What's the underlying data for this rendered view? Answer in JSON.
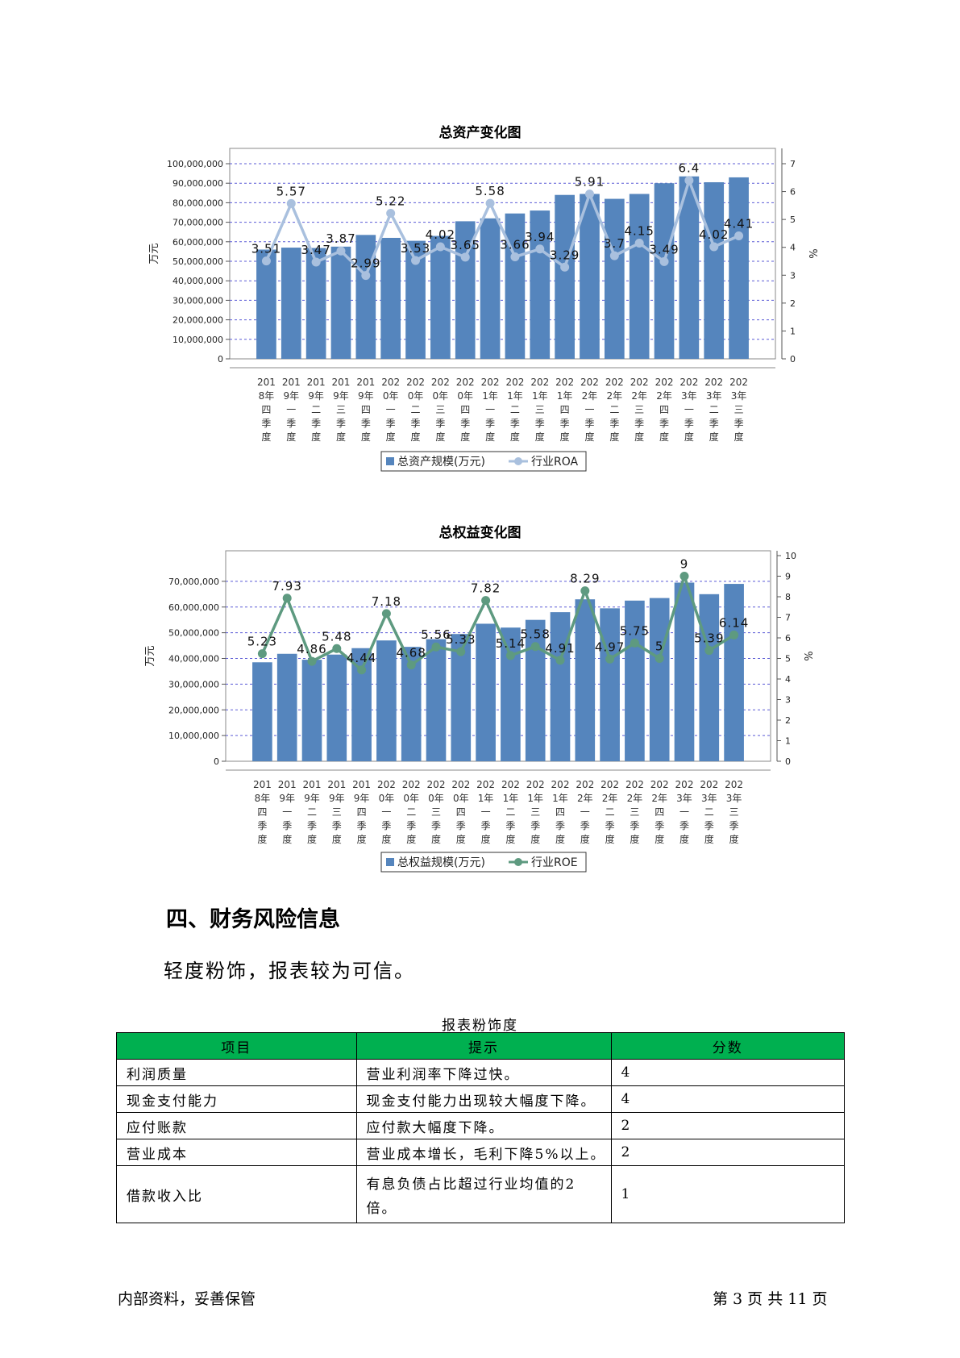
{
  "chart_data": [
    {
      "type": "bar",
      "title": "总资产变化图",
      "ylabel": "万元",
      "y2label": "%",
      "ylim": [
        0,
        100000000
      ],
      "y2lim": [
        0,
        7
      ],
      "yticks": [
        "0",
        "10,000,000",
        "20,000,000",
        "30,000,000",
        "40,000,000",
        "50,000,000",
        "60,000,000",
        "70,000,000",
        "80,000,000",
        "90,000,000",
        "100,000,000"
      ],
      "y2ticks": [
        "0",
        "1",
        "2",
        "3",
        "4",
        "5",
        "6",
        "7"
      ],
      "categories": [
        "2018年四季度",
        "2019年一季度",
        "2019年二季度",
        "2019年三季度",
        "2019年四季度",
        "2020年一季度",
        "2020年二季度",
        "2020年三季度",
        "2020年四季度",
        "2021年一季度",
        "2021年二季度",
        "2021年三季度",
        "2021年四季度",
        "2022年一季度",
        "2022年二季度",
        "2022年三季度",
        "2022年四季度",
        "2023年一季度",
        "2023年二季度",
        "2023年三季度"
      ],
      "series": [
        {
          "name": "总资产规模(万元)",
          "kind": "bar",
          "axis": "left",
          "color": "#5585bd",
          "values": [
            56000000,
            57000000,
            56800000,
            57500000,
            63500000,
            62000000,
            60500000,
            63000000,
            70500000,
            72000000,
            74500000,
            76000000,
            84000000,
            84500000,
            82000000,
            84500000,
            90000000,
            93500000,
            90500000,
            93000000
          ]
        },
        {
          "name": "行业ROA",
          "kind": "line",
          "axis": "right",
          "color": "#a9c0de",
          "values": [
            3.51,
            5.57,
            3.47,
            3.87,
            2.99,
            5.22,
            3.53,
            4.02,
            3.65,
            5.58,
            3.66,
            3.94,
            3.29,
            5.91,
            3.7,
            4.15,
            3.49,
            6.4,
            4.02,
            4.41
          ]
        }
      ],
      "data_labels": [
        "3.51",
        "5.57",
        "3.47",
        "3.87",
        "2.99",
        "5.22",
        "3.53",
        "4.02",
        "3.65",
        "5.58",
        "3.66",
        "3.94",
        "3.29",
        "5.91",
        "3.7",
        "4.15",
        "3.49",
        "6.4",
        "4.02",
        "4.41"
      ],
      "grid": true,
      "legend": "bottom"
    },
    {
      "type": "bar",
      "title": "总权益变化图",
      "ylabel": "万元",
      "y2label": "%",
      "ylim": [
        0,
        80000000
      ],
      "y2lim": [
        0,
        10
      ],
      "yticks": [
        "0",
        "10,000,000",
        "20,000,000",
        "30,000,000",
        "40,000,000",
        "50,000,000",
        "60,000,000",
        "70,000,000"
      ],
      "y2ticks": [
        "0",
        "1",
        "2",
        "3",
        "4",
        "5",
        "6",
        "7",
        "8",
        "9",
        "10"
      ],
      "categories": [
        "2018年四季度",
        "2019年一季度",
        "2019年二季度",
        "2019年三季度",
        "2019年四季度",
        "2020年一季度",
        "2020年二季度",
        "2020年三季度",
        "2020年四季度",
        "2021年一季度",
        "2021年二季度",
        "2021年三季度",
        "2021年四季度",
        "2022年一季度",
        "2022年二季度",
        "2022年三季度",
        "2022年四季度",
        "2023年一季度",
        "2023年二季度",
        "2023年三季度"
      ],
      "series": [
        {
          "name": "总权益规模(万元)",
          "kind": "bar",
          "axis": "left",
          "color": "#5585bd",
          "values": [
            38500000,
            41800000,
            39500000,
            41500000,
            44000000,
            47000000,
            44500000,
            47500000,
            49500000,
            53500000,
            52000000,
            55000000,
            58000000,
            63000000,
            59500000,
            62500000,
            63500000,
            69500000,
            65000000,
            69000000
          ]
        },
        {
          "name": "行业ROE",
          "kind": "line",
          "axis": "right",
          "color": "#5e9a80",
          "values": [
            5.23,
            7.93,
            4.86,
            5.48,
            4.44,
            7.18,
            4.68,
            5.56,
            5.33,
            7.82,
            5.14,
            5.58,
            4.91,
            8.29,
            4.97,
            5.75,
            5.0,
            9.0,
            5.39,
            6.14
          ]
        }
      ],
      "data_labels": [
        "5.23",
        "7.93",
        "4.86",
        "5.48",
        "4.44",
        "7.18",
        "4.68",
        "5.56",
        "5.33",
        "7.82",
        "5.14",
        "5.58",
        "4.91",
        "8.29",
        "4.97",
        "5.75",
        "5",
        "9",
        "5.39",
        "6.14"
      ],
      "grid": true,
      "legend": "bottom"
    }
  ],
  "section": {
    "heading": "四、财务风险信息",
    "body": "轻度粉饰，报表较为可信。"
  },
  "table": {
    "caption": "报表粉饰度",
    "header_color": "#00b050",
    "headers": {
      "item": "项目",
      "hint": "提示",
      "score": "分数"
    },
    "rows": [
      {
        "item": "利润质量",
        "hint": "营业利润率下降过快。",
        "score": "4"
      },
      {
        "item": "现金支付能力",
        "hint": "现金支付能力出现较大幅度下降。",
        "score": "4"
      },
      {
        "item": "应付账款",
        "hint": "应付款大幅度下降。",
        "score": "2"
      },
      {
        "item": "营业成本",
        "hint": "营业成本增长，毛利下降5%以上。",
        "score": "2"
      },
      {
        "item": "借款收入比",
        "hint": "有息负债占比超过行业均值的2倍。",
        "score": "1"
      }
    ]
  },
  "footer": {
    "left": "内部资料，妥善保管",
    "right": "第 3 页   共 11 页"
  }
}
